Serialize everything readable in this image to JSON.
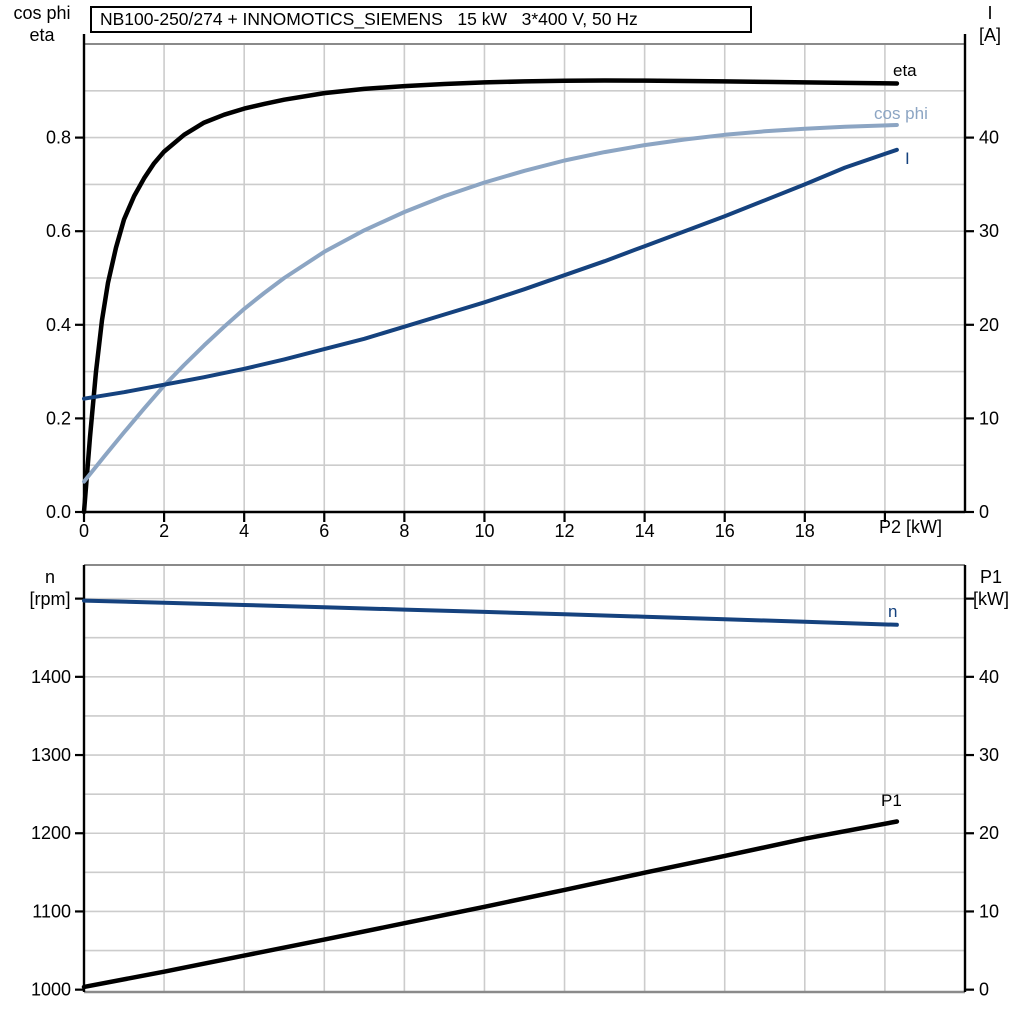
{
  "title": "NB100-250/274 + INNOMOTICS_SIEMENS   15 kW   3*400 V, 50 Hz",
  "colors": {
    "axis": "#000000",
    "border_gray": "#8a8a8a",
    "grid": "#cccccc",
    "black_curve": "#000000",
    "light_blue_curve": "#8ca5c3",
    "dark_blue_curve": "#15427e"
  },
  "chart_data": [
    {
      "type": "line",
      "title": "NB100-250/274 + INNOMOTICS_SIEMENS   15 kW   3*400 V, 50 Hz",
      "x_axis": {
        "label": "P2 [kW]",
        "range": [
          0,
          22
        ],
        "tick_values": [
          0,
          2,
          4,
          6,
          8,
          10,
          12,
          14,
          16,
          18
        ],
        "tick_labels": [
          "0",
          "2",
          "4",
          "6",
          "8",
          "10",
          "12",
          "14",
          "16",
          "18"
        ],
        "extra_tick_values": [
          20
        ],
        "grid_values": [
          2,
          4,
          6,
          8,
          10,
          12,
          14,
          16,
          18,
          20
        ]
      },
      "y_left": {
        "header_lines": [
          "cos phi",
          "eta"
        ],
        "range": [
          0,
          1.0
        ],
        "tick_values": [
          0.0,
          0.2,
          0.4,
          0.6,
          0.8
        ],
        "tick_labels": [
          "0.0",
          "0.2",
          "0.4",
          "0.6",
          "0.8"
        ],
        "extra_tick_values": [],
        "grid_values": [
          0.1,
          0.2,
          0.3,
          0.4,
          0.5,
          0.6,
          0.7,
          0.8,
          0.9
        ]
      },
      "y_right": {
        "header_lines": [
          "I",
          "[A]"
        ],
        "range": [
          0,
          50
        ],
        "tick_values": [
          0,
          10,
          20,
          30,
          40
        ],
        "tick_labels": [
          "0",
          "10",
          "20",
          "30",
          "40"
        ],
        "extra_tick_values": []
      },
      "series": [
        {
          "name": "eta",
          "axis": "left",
          "color": "#000000",
          "width": 4.5,
          "x": [
            0,
            0.15,
            0.3,
            0.45,
            0.6,
            0.8,
            1.0,
            1.25,
            1.5,
            1.75,
            2,
            2.5,
            3,
            3.5,
            4,
            4.5,
            5,
            6,
            7,
            8,
            9,
            10,
            11,
            12,
            13,
            14,
            15,
            16,
            17,
            18,
            19,
            20.3
          ],
          "y": [
            0,
            0.16,
            0.3,
            0.41,
            0.49,
            0.565,
            0.625,
            0.675,
            0.713,
            0.745,
            0.77,
            0.806,
            0.832,
            0.849,
            0.862,
            0.872,
            0.881,
            0.895,
            0.904,
            0.91,
            0.9145,
            0.918,
            0.92,
            0.9215,
            0.922,
            0.9218,
            0.921,
            0.92,
            0.919,
            0.918,
            0.9168,
            0.9155
          ]
        },
        {
          "name": "cos phi",
          "axis": "left",
          "color": "#8ca5c3",
          "width": 4,
          "x": [
            0,
            0.5,
            1,
            1.5,
            2,
            2.5,
            3,
            3.5,
            4,
            4.5,
            5,
            6,
            7,
            8,
            9,
            10,
            11,
            12,
            13,
            14,
            15,
            16,
            17,
            18,
            19,
            20.3
          ],
          "y": [
            0.065,
            0.118,
            0.17,
            0.221,
            0.27,
            0.314,
            0.356,
            0.396,
            0.434,
            0.468,
            0.5,
            0.556,
            0.602,
            0.641,
            0.675,
            0.704,
            0.729,
            0.751,
            0.769,
            0.784,
            0.796,
            0.806,
            0.8135,
            0.819,
            0.823,
            0.827
          ]
        },
        {
          "name": "I",
          "axis": "right",
          "color": "#15427e",
          "width": 4,
          "x": [
            0,
            1,
            2,
            3,
            4,
            5,
            6,
            7,
            8,
            9,
            10,
            11,
            12,
            13,
            14,
            15,
            16,
            17,
            18,
            19,
            20.3
          ],
          "y": [
            12.1,
            12.8,
            13.6,
            14.4,
            15.3,
            16.3,
            17.4,
            18.5,
            19.8,
            21.1,
            22.4,
            23.8,
            25.3,
            26.8,
            28.4,
            30.0,
            31.6,
            33.3,
            35.0,
            36.8,
            38.7
          ]
        }
      ]
    },
    {
      "type": "line",
      "x_axis": {
        "label": "",
        "range": [
          0,
          22
        ],
        "tick_values": [],
        "tick_labels": [],
        "extra_tick_values": [],
        "grid_values": [
          2,
          4,
          6,
          8,
          10,
          12,
          14,
          16,
          18,
          20
        ]
      },
      "y_left": {
        "header_lines": [
          "n",
          "[rpm]"
        ],
        "range": [
          997,
          1543
        ],
        "tick_values": [
          1000,
          1100,
          1200,
          1300,
          1400
        ],
        "tick_labels": [
          "1000",
          "1100",
          "1200",
          "1300",
          "1400"
        ],
        "extra_tick_values": [
          1500
        ],
        "grid_values": [
          1050,
          1100,
          1150,
          1200,
          1250,
          1300,
          1350,
          1400,
          1450,
          1500
        ]
      },
      "y_right": {
        "header_lines": [
          "P1",
          "[kW]"
        ],
        "range": [
          -0.3,
          54.3
        ],
        "tick_values": [
          0,
          10,
          20,
          30,
          40
        ],
        "tick_labels": [
          "0",
          "10",
          "20",
          "30",
          "40"
        ],
        "extra_tick_values": [
          50
        ]
      },
      "series": [
        {
          "name": "n",
          "axis": "left",
          "color": "#15427e",
          "width": 4,
          "x": [
            0,
            2,
            4,
            6,
            8,
            10,
            12,
            14,
            16,
            18,
            20.3
          ],
          "y": [
            1497.5,
            1494.7,
            1491.8,
            1488.9,
            1486.0,
            1483.0,
            1480.0,
            1476.9,
            1473.7,
            1470.4,
            1466.5
          ]
        },
        {
          "name": "P1",
          "axis": "right",
          "color": "#000000",
          "width": 4.5,
          "x": [
            0,
            2,
            4,
            6,
            8,
            10,
            12,
            14,
            16,
            18,
            20.3
          ],
          "y": [
            0.35,
            2.3,
            4.35,
            6.4,
            8.5,
            10.6,
            12.75,
            14.95,
            17.1,
            19.3,
            21.5
          ]
        }
      ]
    }
  ]
}
